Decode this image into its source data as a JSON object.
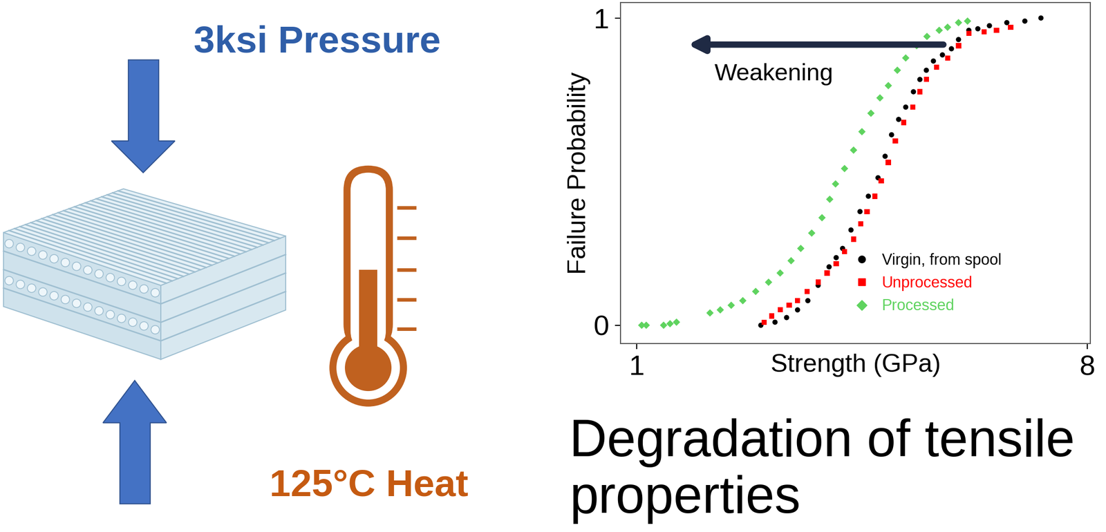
{
  "chart_data": {
    "type": "scatter",
    "x_label": "Strength (GPa)",
    "y_label": "Failure Probability",
    "xlim": [
      0.75,
      8.05
    ],
    "ylim": [
      -0.06,
      1.05
    ],
    "xticks": [
      1,
      8
    ],
    "yticks": [
      0,
      1
    ],
    "legend": "lower right",
    "annotations": [
      "Weakening"
    ],
    "series": [
      {
        "name": "Virgin, from spool",
        "color": "#000000",
        "marker": "circle",
        "x": [
          2.93,
          3.15,
          3.33,
          3.5,
          3.66,
          3.82,
          3.99,
          4.1,
          4.2,
          4.33,
          4.47,
          4.6,
          4.75,
          4.86,
          4.96,
          5.07,
          5.18,
          5.3,
          5.4,
          5.5,
          5.61,
          5.75,
          5.89,
          6.0,
          6.16,
          6.3,
          6.48,
          6.75,
          7.03,
          7.28
        ],
        "values": [
          0.0,
          0.01,
          0.025,
          0.05,
          0.08,
          0.13,
          0.19,
          0.22,
          0.25,
          0.31,
          0.37,
          0.42,
          0.48,
          0.55,
          0.62,
          0.67,
          0.71,
          0.76,
          0.8,
          0.83,
          0.86,
          0.88,
          0.9,
          0.93,
          0.96,
          0.965,
          0.975,
          0.985,
          0.99,
          1.0
        ]
      },
      {
        "name": "Unprocessed",
        "color": "#ff0000",
        "marker": "square",
        "x": [
          2.98,
          3.1,
          3.23,
          3.37,
          3.5,
          3.65,
          3.82,
          3.96,
          4.1,
          4.23,
          4.37,
          4.48,
          4.58,
          4.7,
          4.8,
          4.91,
          5.02,
          5.15,
          5.29,
          5.4,
          5.5,
          5.66,
          5.83,
          6.0,
          6.16,
          6.4,
          6.59,
          6.81
        ],
        "values": [
          0.01,
          0.03,
          0.05,
          0.065,
          0.08,
          0.11,
          0.14,
          0.17,
          0.2,
          0.24,
          0.28,
          0.33,
          0.37,
          0.42,
          0.47,
          0.53,
          0.6,
          0.66,
          0.71,
          0.76,
          0.8,
          0.84,
          0.87,
          0.91,
          0.95,
          0.955,
          0.96,
          0.97
        ]
      },
      {
        "name": "Processed",
        "color": "#5fd35f",
        "marker": "diamond",
        "x": [
          1.08,
          1.15,
          1.42,
          1.52,
          1.62,
          2.14,
          2.3,
          2.47,
          2.65,
          2.85,
          3.05,
          3.23,
          3.4,
          3.55,
          3.72,
          3.88,
          4.0,
          4.09,
          4.23,
          4.37,
          4.5,
          4.64,
          4.78,
          4.91,
          5.05,
          5.18,
          5.35,
          5.51,
          5.7,
          5.83,
          6.0,
          6.14
        ],
        "values": [
          0.0,
          0.0,
          0.0,
          0.005,
          0.01,
          0.04,
          0.05,
          0.065,
          0.08,
          0.11,
          0.14,
          0.17,
          0.21,
          0.25,
          0.3,
          0.35,
          0.41,
          0.46,
          0.51,
          0.57,
          0.63,
          0.69,
          0.74,
          0.78,
          0.83,
          0.87,
          0.91,
          0.94,
          0.96,
          0.97,
          0.985,
          0.99
        ]
      }
    ]
  },
  "diagram": {
    "pressure_label": "3ksi Pressure",
    "heat_label": "125°C Heat"
  },
  "caption": "Degradation of tensile properties"
}
